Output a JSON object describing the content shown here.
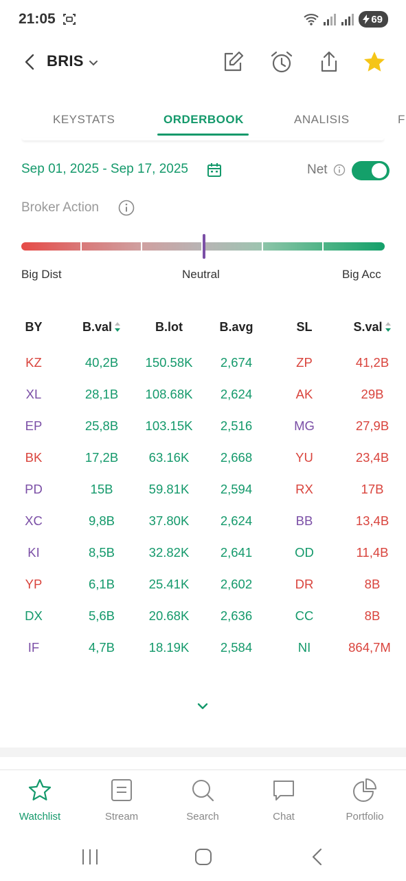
{
  "status": {
    "time": "21:05",
    "battery": "69"
  },
  "header": {
    "ticker": "BRIS"
  },
  "tabs": [
    {
      "label": "KEYSTATS",
      "active": false
    },
    {
      "label": "ORDERBOOK",
      "active": true
    },
    {
      "label": "ANALISIS",
      "active": false
    },
    {
      "label": "F",
      "active": false
    }
  ],
  "filters": {
    "date_range": "Sep 01, 2025 - Sep 17, 2025",
    "net_label": "Net",
    "net_enabled": true
  },
  "broker_action": {
    "title": "Broker Action",
    "scale_left": "Big Dist",
    "scale_mid": "Neutral",
    "scale_right": "Big Acc",
    "indicator": "Neutral"
  },
  "table": {
    "headers": [
      "BY",
      "B.val",
      "B.lot",
      "B.avg",
      "SL",
      "S.val"
    ],
    "rows": [
      {
        "by": "KZ",
        "bval": "40,2B",
        "blot": "150.58K",
        "bavg": "2,674",
        "sl": "ZP",
        "sval": "41,2B"
      },
      {
        "by": "XL",
        "bval": "28,1B",
        "blot": "108.68K",
        "bavg": "2,624",
        "sl": "AK",
        "sval": "29B"
      },
      {
        "by": "EP",
        "bval": "25,8B",
        "blot": "103.15K",
        "bavg": "2,516",
        "sl": "MG",
        "sval": "27,9B"
      },
      {
        "by": "BK",
        "bval": "17,2B",
        "blot": "63.16K",
        "bavg": "2,668",
        "sl": "YU",
        "sval": "23,4B"
      },
      {
        "by": "PD",
        "bval": "15B",
        "blot": "59.81K",
        "bavg": "2,594",
        "sl": "RX",
        "sval": "17B"
      },
      {
        "by": "XC",
        "bval": "9,8B",
        "blot": "37.80K",
        "bavg": "2,624",
        "sl": "BB",
        "sval": "13,4B"
      },
      {
        "by": "KI",
        "bval": "8,5B",
        "blot": "32.82K",
        "bavg": "2,641",
        "sl": "OD",
        "sval": "11,4B"
      },
      {
        "by": "YP",
        "bval": "6,1B",
        "blot": "25.41K",
        "bavg": "2,602",
        "sl": "DR",
        "sval": "8B"
      },
      {
        "by": "DX",
        "bval": "5,6B",
        "blot": "20.68K",
        "bavg": "2,636",
        "sl": "CC",
        "sval": "8B"
      },
      {
        "by": "IF",
        "bval": "4,7B",
        "blot": "18.19K",
        "bavg": "2,584",
        "sl": "NI",
        "sval": "864,7M"
      }
    ]
  },
  "nav": [
    {
      "label": "Watchlist",
      "icon": "star-icon",
      "active": true
    },
    {
      "label": "Stream",
      "icon": "stream-icon",
      "active": false
    },
    {
      "label": "Search",
      "icon": "search-icon",
      "active": false
    },
    {
      "label": "Chat",
      "icon": "chat-icon",
      "active": false
    },
    {
      "label": "Portfolio",
      "icon": "pie-chart-icon",
      "active": false
    }
  ],
  "colors": {
    "accent": "#14996b",
    "sell": "#d9443d",
    "foreign": "#7b4fa6",
    "star": "#f5c518"
  }
}
